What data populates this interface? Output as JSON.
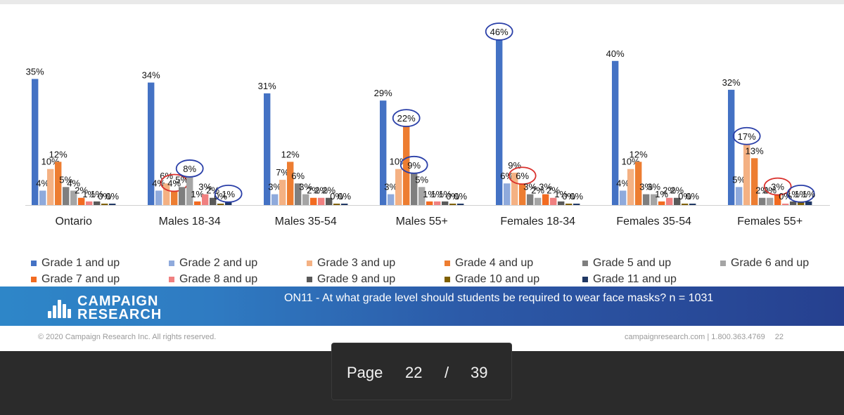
{
  "chart_data": {
    "type": "bar",
    "title": "",
    "xlabel": "",
    "ylabel": "",
    "ylim": [
      0,
      46
    ],
    "grid": false,
    "legend_position": "bottom",
    "categories": [
      "Ontario",
      "Males 18-34",
      "Males 35-54",
      "Males 55+",
      "Females 18-34",
      "Females 35-54",
      "Females 55+"
    ],
    "series": [
      {
        "name": "Grade 1 and up",
        "color": "#4472c4",
        "values": [
          35,
          34,
          31,
          29,
          46,
          40,
          32
        ]
      },
      {
        "name": "Grade 2 and up",
        "color": "#8faadc",
        "values": [
          4,
          4,
          3,
          3,
          6,
          4,
          5
        ]
      },
      {
        "name": "Grade 3 and up",
        "color": "#f4b183",
        "values": [
          10,
          6,
          7,
          10,
          9,
          10,
          17
        ]
      },
      {
        "name": "Grade 4 and up",
        "color": "#ed7d31",
        "values": [
          12,
          4,
          12,
          22,
          6,
          12,
          13
        ]
      },
      {
        "name": "Grade 5 and up",
        "color": "#7f7f7f",
        "values": [
          5,
          5,
          6,
          9,
          3,
          3,
          2
        ]
      },
      {
        "name": "Grade 6 and up",
        "color": "#a5a5a5",
        "values": [
          4,
          8,
          3,
          5,
          2,
          3,
          2
        ]
      },
      {
        "name": "Grade 7 and up",
        "color": "#f26b21",
        "values": [
          2,
          1,
          2,
          1,
          3,
          1,
          3
        ]
      },
      {
        "name": "Grade 8 and up",
        "color": "#f08080",
        "values": [
          1,
          3,
          2,
          1,
          2,
          2,
          0
        ]
      },
      {
        "name": "Grade 9 and up",
        "color": "#595959",
        "values": [
          1,
          2,
          2,
          1,
          1,
          2,
          1
        ]
      },
      {
        "name": "Grade 10 and up",
        "color": "#7f6000",
        "values": [
          0,
          0,
          0,
          0,
          0,
          0,
          1
        ]
      },
      {
        "name": "Grade 11 and up",
        "color": "#203864",
        "values": [
          0,
          1,
          0,
          0,
          0,
          0,
          1
        ]
      }
    ],
    "annotations": [
      {
        "type": "highlight-circle",
        "category": "Males 18-34",
        "series": "Grade 4 and up",
        "color": "#d9302c"
      },
      {
        "type": "highlight-circle",
        "category": "Males 18-34",
        "series": "Grade 6 and up",
        "color": "#2a3fa8"
      },
      {
        "type": "highlight-circle",
        "category": "Males 18-34",
        "series": "Grade 11 and up",
        "color": "#2a3fa8"
      },
      {
        "type": "highlight-circle",
        "category": "Males 55+",
        "series": "Grade 4 and up",
        "color": "#2a3fa8"
      },
      {
        "type": "highlight-circle",
        "category": "Males 55+",
        "series": "Grade 5 and up",
        "color": "#2a3fa8"
      },
      {
        "type": "highlight-circle",
        "category": "Females 18-34",
        "series": "Grade 1 and up",
        "color": "#2a3fa8"
      },
      {
        "type": "highlight-circle",
        "category": "Females 18-34",
        "series": "Grade 4 and up",
        "color": "#d9302c"
      },
      {
        "type": "highlight-circle",
        "category": "Females 55+",
        "series": "Grade 3 and up",
        "color": "#2a3fa8"
      },
      {
        "type": "highlight-circle",
        "category": "Females 55+",
        "series": "Grade 7 and up",
        "color": "#d9302c"
      },
      {
        "type": "highlight-circle",
        "category": "Females 55+",
        "series": "Grade 10 and up",
        "color": "#2a3fa8"
      }
    ]
  },
  "banner": {
    "logo_line1": "CAMPAIGN",
    "logo_line2": "RESEARCH",
    "question": "ON11 - At what grade level should students be required to wear face masks? n = 1031"
  },
  "footer": {
    "copyright": "© 2020 Campaign Research Inc. All rights reserved.",
    "contact": "campaignresearch.com | 1.800.363.4769",
    "slide_number": "22"
  },
  "pager": {
    "label": "Page",
    "current": "22",
    "separator": "/",
    "total": "39"
  }
}
